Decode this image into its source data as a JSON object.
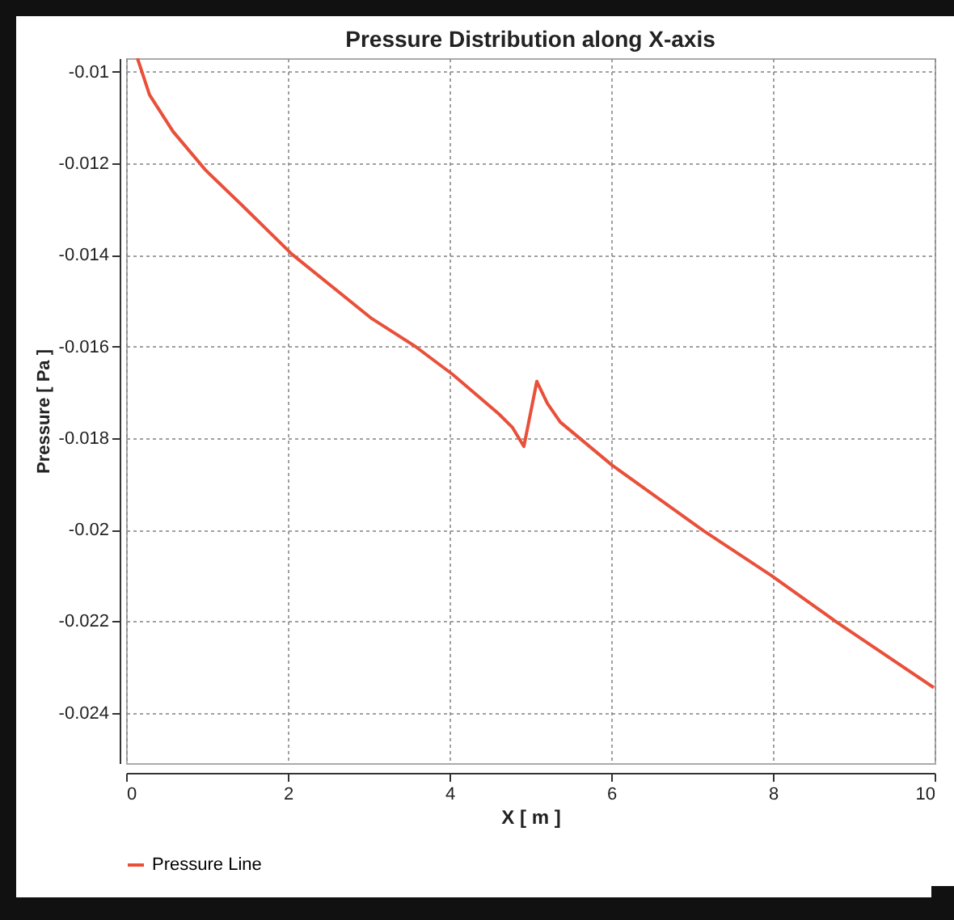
{
  "chart_data": {
    "type": "line",
    "title": "Pressure Distribution along X-axis",
    "xlabel": "X [ m ]",
    "ylabel": "Pressure [ Pa ]",
    "series": [
      {
        "name": "Pressure Line",
        "color": "#e8503a",
        "x": [
          0.14,
          0.29,
          0.58,
          0.98,
          1.45,
          2.05,
          3.04,
          3.58,
          4.04,
          4.61,
          4.78,
          4.92,
          5.08,
          5.21,
          5.37,
          6.01,
          7.14,
          7.98,
          8.79,
          9.99
        ],
        "values": [
          -0.0097,
          -0.0105,
          -0.0113,
          -0.01214,
          -0.01294,
          -0.01398,
          -0.01539,
          -0.016,
          -0.01661,
          -0.01747,
          -0.01777,
          -0.01818,
          -0.01676,
          -0.01724,
          -0.01765,
          -0.01859,
          -0.02002,
          -0.021,
          -0.02202,
          -0.02345
        ]
      }
    ],
    "xlim": [
      0,
      10
    ],
    "xticks": [
      0,
      2,
      4,
      6,
      8,
      10
    ],
    "ylim": [
      -0.0251,
      -0.0097
    ],
    "yticks": [
      -0.01,
      -0.012,
      -0.014,
      -0.016,
      -0.018,
      -0.02,
      -0.022,
      -0.024
    ],
    "grid": true,
    "legend": "bottom",
    "line_style": "solid"
  }
}
